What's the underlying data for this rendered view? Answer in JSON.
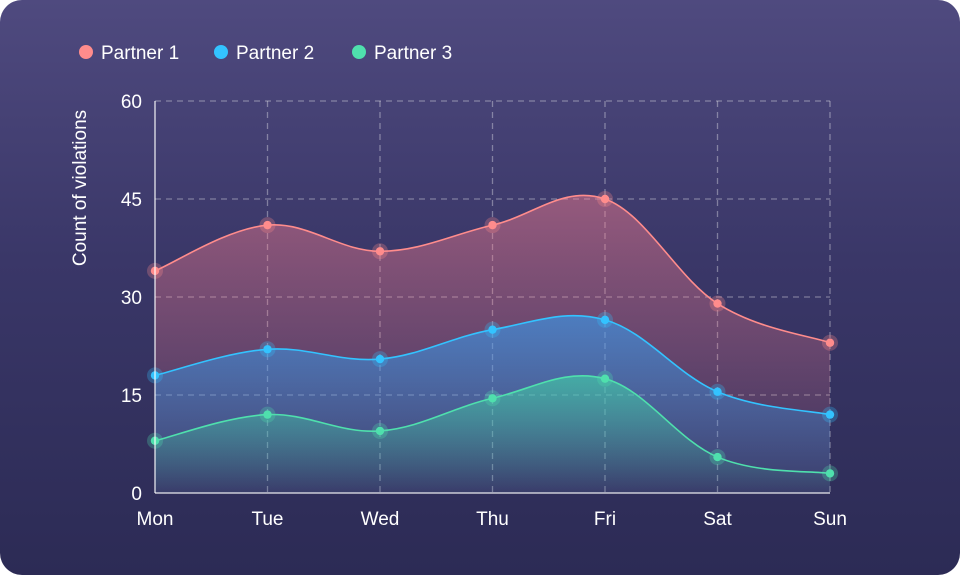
{
  "chart_data": {
    "type": "area",
    "categories": [
      "Mon",
      "Tue",
      "Wed",
      "Thu",
      "Fri",
      "Sat",
      "Sun"
    ],
    "series": [
      {
        "name": "Partner 1",
        "color": "#ff8c8c",
        "values": [
          34,
          41,
          37,
          41,
          45,
          29,
          23
        ]
      },
      {
        "name": "Partner 2",
        "color": "#33c3ff",
        "values": [
          18,
          22,
          20.5,
          25,
          26.5,
          15.5,
          12
        ]
      },
      {
        "name": "Partner 3",
        "color": "#4fe0ad",
        "values": [
          8,
          12,
          9.5,
          14.5,
          17.5,
          5.5,
          3
        ]
      }
    ],
    "ylabel": "Count of violations",
    "xlabel": "",
    "yticks": [
      0,
      15,
      30,
      45,
      60
    ],
    "ylim": [
      0,
      60
    ],
    "grid": true,
    "legend_position": "top-left"
  }
}
